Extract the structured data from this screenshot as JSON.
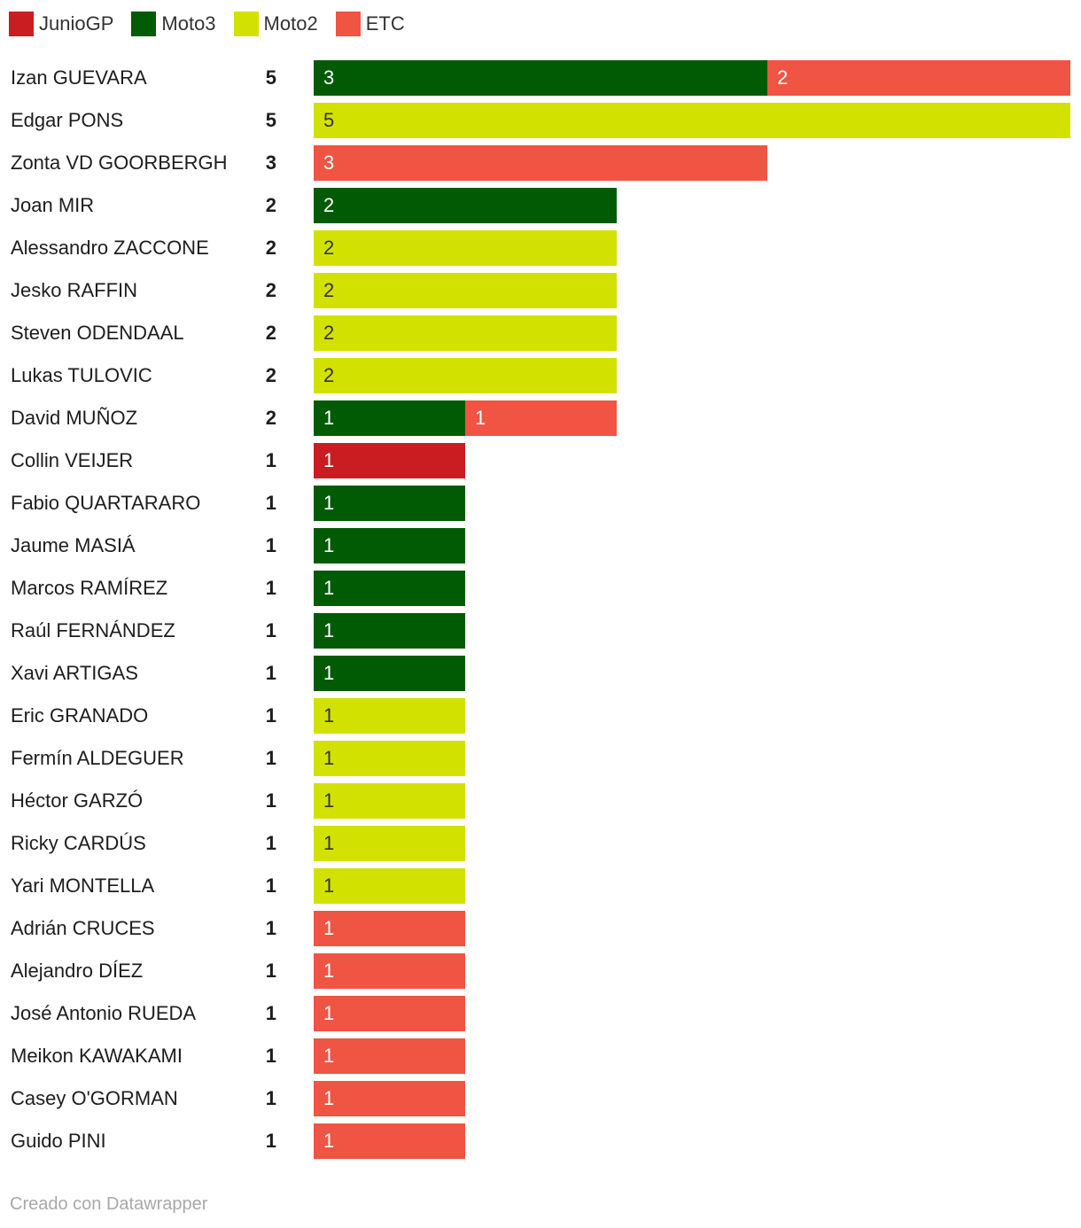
{
  "legend": [
    {
      "name": "JunioGP",
      "color": "#c91d22"
    },
    {
      "name": "Moto3",
      "color": "#015b04"
    },
    {
      "name": "Moto2",
      "color": "#d3e100"
    },
    {
      "name": "ETC",
      "color": "#f05442"
    }
  ],
  "chart_data": {
    "type": "bar",
    "orientation": "horizontal",
    "stacked": true,
    "xlim": [
      0,
      5
    ],
    "series_order": [
      "JunioGP",
      "Moto3",
      "Moto2",
      "ETC"
    ],
    "rows": [
      {
        "name": "Izan GUEVARA",
        "total": 5,
        "JunioGP": 0,
        "Moto3": 3,
        "Moto2": 0,
        "ETC": 2
      },
      {
        "name": "Edgar PONS",
        "total": 5,
        "JunioGP": 0,
        "Moto3": 0,
        "Moto2": 5,
        "ETC": 0
      },
      {
        "name": "Zonta VD GOORBERGH",
        "total": 3,
        "JunioGP": 0,
        "Moto3": 0,
        "Moto2": 0,
        "ETC": 3
      },
      {
        "name": "Joan MIR",
        "total": 2,
        "JunioGP": 0,
        "Moto3": 2,
        "Moto2": 0,
        "ETC": 0
      },
      {
        "name": "Alessandro ZACCONE",
        "total": 2,
        "JunioGP": 0,
        "Moto3": 0,
        "Moto2": 2,
        "ETC": 0
      },
      {
        "name": "Jesko RAFFIN",
        "total": 2,
        "JunioGP": 0,
        "Moto3": 0,
        "Moto2": 2,
        "ETC": 0
      },
      {
        "name": "Steven ODENDAAL",
        "total": 2,
        "JunioGP": 0,
        "Moto3": 0,
        "Moto2": 2,
        "ETC": 0
      },
      {
        "name": "Lukas TULOVIC",
        "total": 2,
        "JunioGP": 0,
        "Moto3": 0,
        "Moto2": 2,
        "ETC": 0
      },
      {
        "name": "David MUÑOZ",
        "total": 2,
        "JunioGP": 0,
        "Moto3": 1,
        "Moto2": 0,
        "ETC": 1
      },
      {
        "name": "Collin VEIJER",
        "total": 1,
        "JunioGP": 1,
        "Moto3": 0,
        "Moto2": 0,
        "ETC": 0
      },
      {
        "name": "Fabio QUARTARARO",
        "total": 1,
        "JunioGP": 0,
        "Moto3": 1,
        "Moto2": 0,
        "ETC": 0
      },
      {
        "name": "Jaume MASIÁ",
        "total": 1,
        "JunioGP": 0,
        "Moto3": 1,
        "Moto2": 0,
        "ETC": 0
      },
      {
        "name": "Marcos RAMÍREZ",
        "total": 1,
        "JunioGP": 0,
        "Moto3": 1,
        "Moto2": 0,
        "ETC": 0
      },
      {
        "name": "Raúl FERNÁNDEZ",
        "total": 1,
        "JunioGP": 0,
        "Moto3": 1,
        "Moto2": 0,
        "ETC": 0
      },
      {
        "name": "Xavi ARTIGAS",
        "total": 1,
        "JunioGP": 0,
        "Moto3": 1,
        "Moto2": 0,
        "ETC": 0
      },
      {
        "name": "Eric GRANADO",
        "total": 1,
        "JunioGP": 0,
        "Moto3": 0,
        "Moto2": 1,
        "ETC": 0
      },
      {
        "name": "Fermín ALDEGUER",
        "total": 1,
        "JunioGP": 0,
        "Moto3": 0,
        "Moto2": 1,
        "ETC": 0
      },
      {
        "name": "Héctor GARZÓ",
        "total": 1,
        "JunioGP": 0,
        "Moto3": 0,
        "Moto2": 1,
        "ETC": 0
      },
      {
        "name": "Ricky CARDÚS",
        "total": 1,
        "JunioGP": 0,
        "Moto3": 0,
        "Moto2": 1,
        "ETC": 0
      },
      {
        "name": "Yari MONTELLA",
        "total": 1,
        "JunioGP": 0,
        "Moto3": 0,
        "Moto2": 1,
        "ETC": 0
      },
      {
        "name": "Adrián CRUCES",
        "total": 1,
        "JunioGP": 0,
        "Moto3": 0,
        "Moto2": 0,
        "ETC": 1
      },
      {
        "name": "Alejandro DÍEZ",
        "total": 1,
        "JunioGP": 0,
        "Moto3": 0,
        "Moto2": 0,
        "ETC": 1
      },
      {
        "name": "José Antonio RUEDA",
        "total": 1,
        "JunioGP": 0,
        "Moto3": 0,
        "Moto2": 0,
        "ETC": 1
      },
      {
        "name": "Meikon KAWAKAMI",
        "total": 1,
        "JunioGP": 0,
        "Moto3": 0,
        "Moto2": 0,
        "ETC": 1
      },
      {
        "name": "Casey O'GORMAN",
        "total": 1,
        "JunioGP": 0,
        "Moto3": 0,
        "Moto2": 0,
        "ETC": 1
      },
      {
        "name": "Guido PINI",
        "total": 1,
        "JunioGP": 0,
        "Moto3": 0,
        "Moto2": 0,
        "ETC": 1
      }
    ]
  },
  "segment_text_colors": {
    "JunioGP": "#ffffff",
    "Moto3": "#ffffff",
    "Moto2": "#333333",
    "ETC": "#ffffff"
  },
  "footer": {
    "credit": "Creado con Datawrapper"
  }
}
